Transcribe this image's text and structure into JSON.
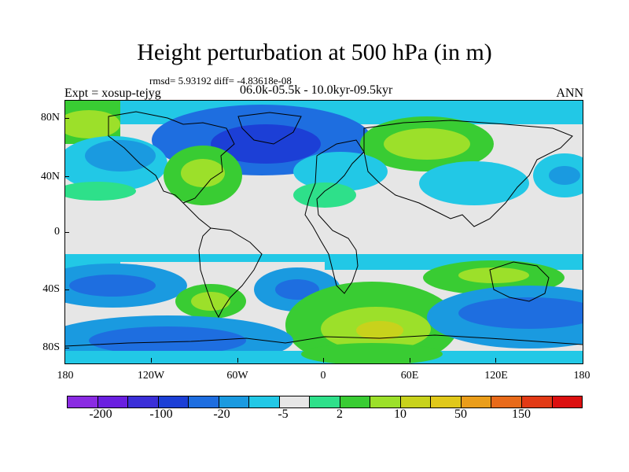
{
  "header": {
    "title": "Height perturbation at 500 hPa (in m)",
    "rmsd_line": "rmsd= 5.93192 diff= -4.83618e-08",
    "experiment": "Expt = xosup-tejyg",
    "period": "06.0k-05.5k - 10.0kyr-09.5kyr",
    "season": "ANN"
  },
  "axes": {
    "y_ticks": [
      "80N",
      "40N",
      "0",
      "40S",
      "80S"
    ],
    "x_ticks": [
      "180",
      "120W",
      "60W",
      "0",
      "60E",
      "120E",
      "180"
    ]
  },
  "colorbar": {
    "colors": [
      "#8a2be2",
      "#6a1fe0",
      "#3b2fd8",
      "#1c3fd6",
      "#1e6ee0",
      "#1a9ae0",
      "#22c8e6",
      "#e6e6e6",
      "#2ee08a",
      "#39cc33",
      "#9ce02a",
      "#c8d21c",
      "#e0c81a",
      "#ea9d1a",
      "#e86a1a",
      "#e23a16",
      "#dc1010"
    ],
    "labels": [
      "-200",
      "-100",
      "-20",
      "-5",
      "2",
      "10",
      "50",
      "150"
    ]
  },
  "field_colors": {
    "neutral": "#e6e6e6",
    "blue_dark": "#1c3fd6",
    "blue": "#1e6ee0",
    "blue_mid": "#1a9ae0",
    "cyan": "#22c8e6",
    "green_light": "#2ee08a",
    "green": "#39cc33",
    "yellow_green": "#9ce02a",
    "yellow": "#c8d21c"
  }
}
